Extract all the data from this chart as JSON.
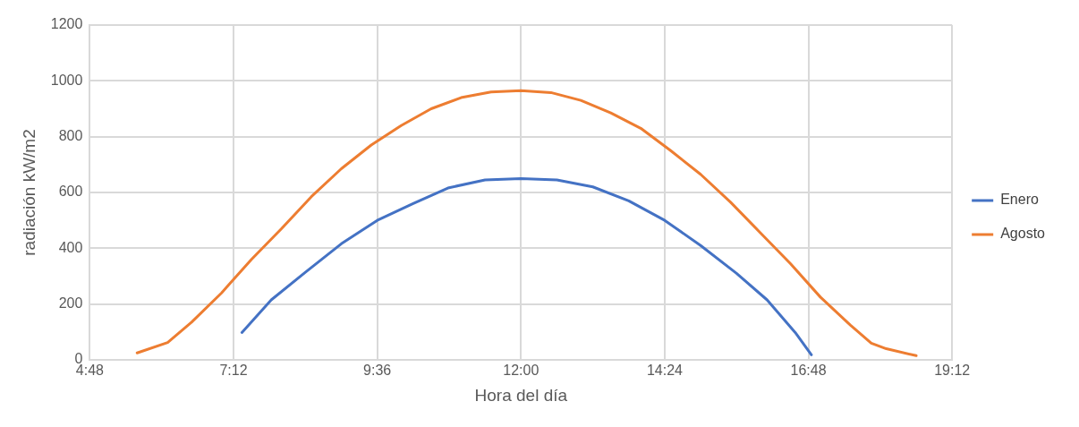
{
  "chart_data": {
    "type": "line",
    "xlabel": "Hora del día",
    "ylabel": "radiación kW/m2",
    "xlim": [
      4.8,
      19.2
    ],
    "xticks": [
      {
        "value": 4.8,
        "label": "4:48"
      },
      {
        "value": 7.2,
        "label": "7:12"
      },
      {
        "value": 9.6,
        "label": "9:36"
      },
      {
        "value": 12,
        "label": "12:00"
      },
      {
        "value": 14.4,
        "label": "14:24"
      },
      {
        "value": 16.8,
        "label": "16:48"
      },
      {
        "value": 19.2,
        "label": "19:12"
      }
    ],
    "ylim": [
      0,
      1200
    ],
    "yticks": [
      0,
      200,
      400,
      600,
      800,
      1000,
      1200
    ],
    "grid": true,
    "legend": "right",
    "marker": "none",
    "line_style": "solid",
    "series": [
      {
        "name": "Enero",
        "color": "#4472c4",
        "x": [
          7.34,
          7.83,
          8.4,
          9,
          9.6,
          10.2,
          10.78,
          11.4,
          12,
          12.6,
          13.2,
          13.8,
          14.4,
          15,
          15.6,
          16.11,
          16.58,
          16.85
        ],
        "values": [
          98,
          215,
          314,
          416,
          500,
          560,
          616,
          645,
          650,
          645,
          620,
          570,
          500,
          410,
          310,
          215,
          98,
          18
        ]
      },
      {
        "name": "Agosto",
        "color": "#ed7d31",
        "x": [
          5.59,
          6.1,
          6.5,
          7,
          7.5,
          8,
          8.5,
          9,
          9.5,
          10,
          10.5,
          11,
          11.5,
          12,
          12.5,
          13,
          13.5,
          14,
          14.5,
          15,
          15.5,
          16,
          16.5,
          17,
          17.5,
          17.85,
          18.1,
          18.6
        ],
        "values": [
          25,
          62,
          135,
          240,
          360,
          470,
          585,
          685,
          770,
          840,
          900,
          940,
          960,
          965,
          958,
          930,
          885,
          830,
          750,
          665,
          565,
          455,
          345,
          225,
          125,
          60,
          40,
          15
        ]
      }
    ]
  }
}
